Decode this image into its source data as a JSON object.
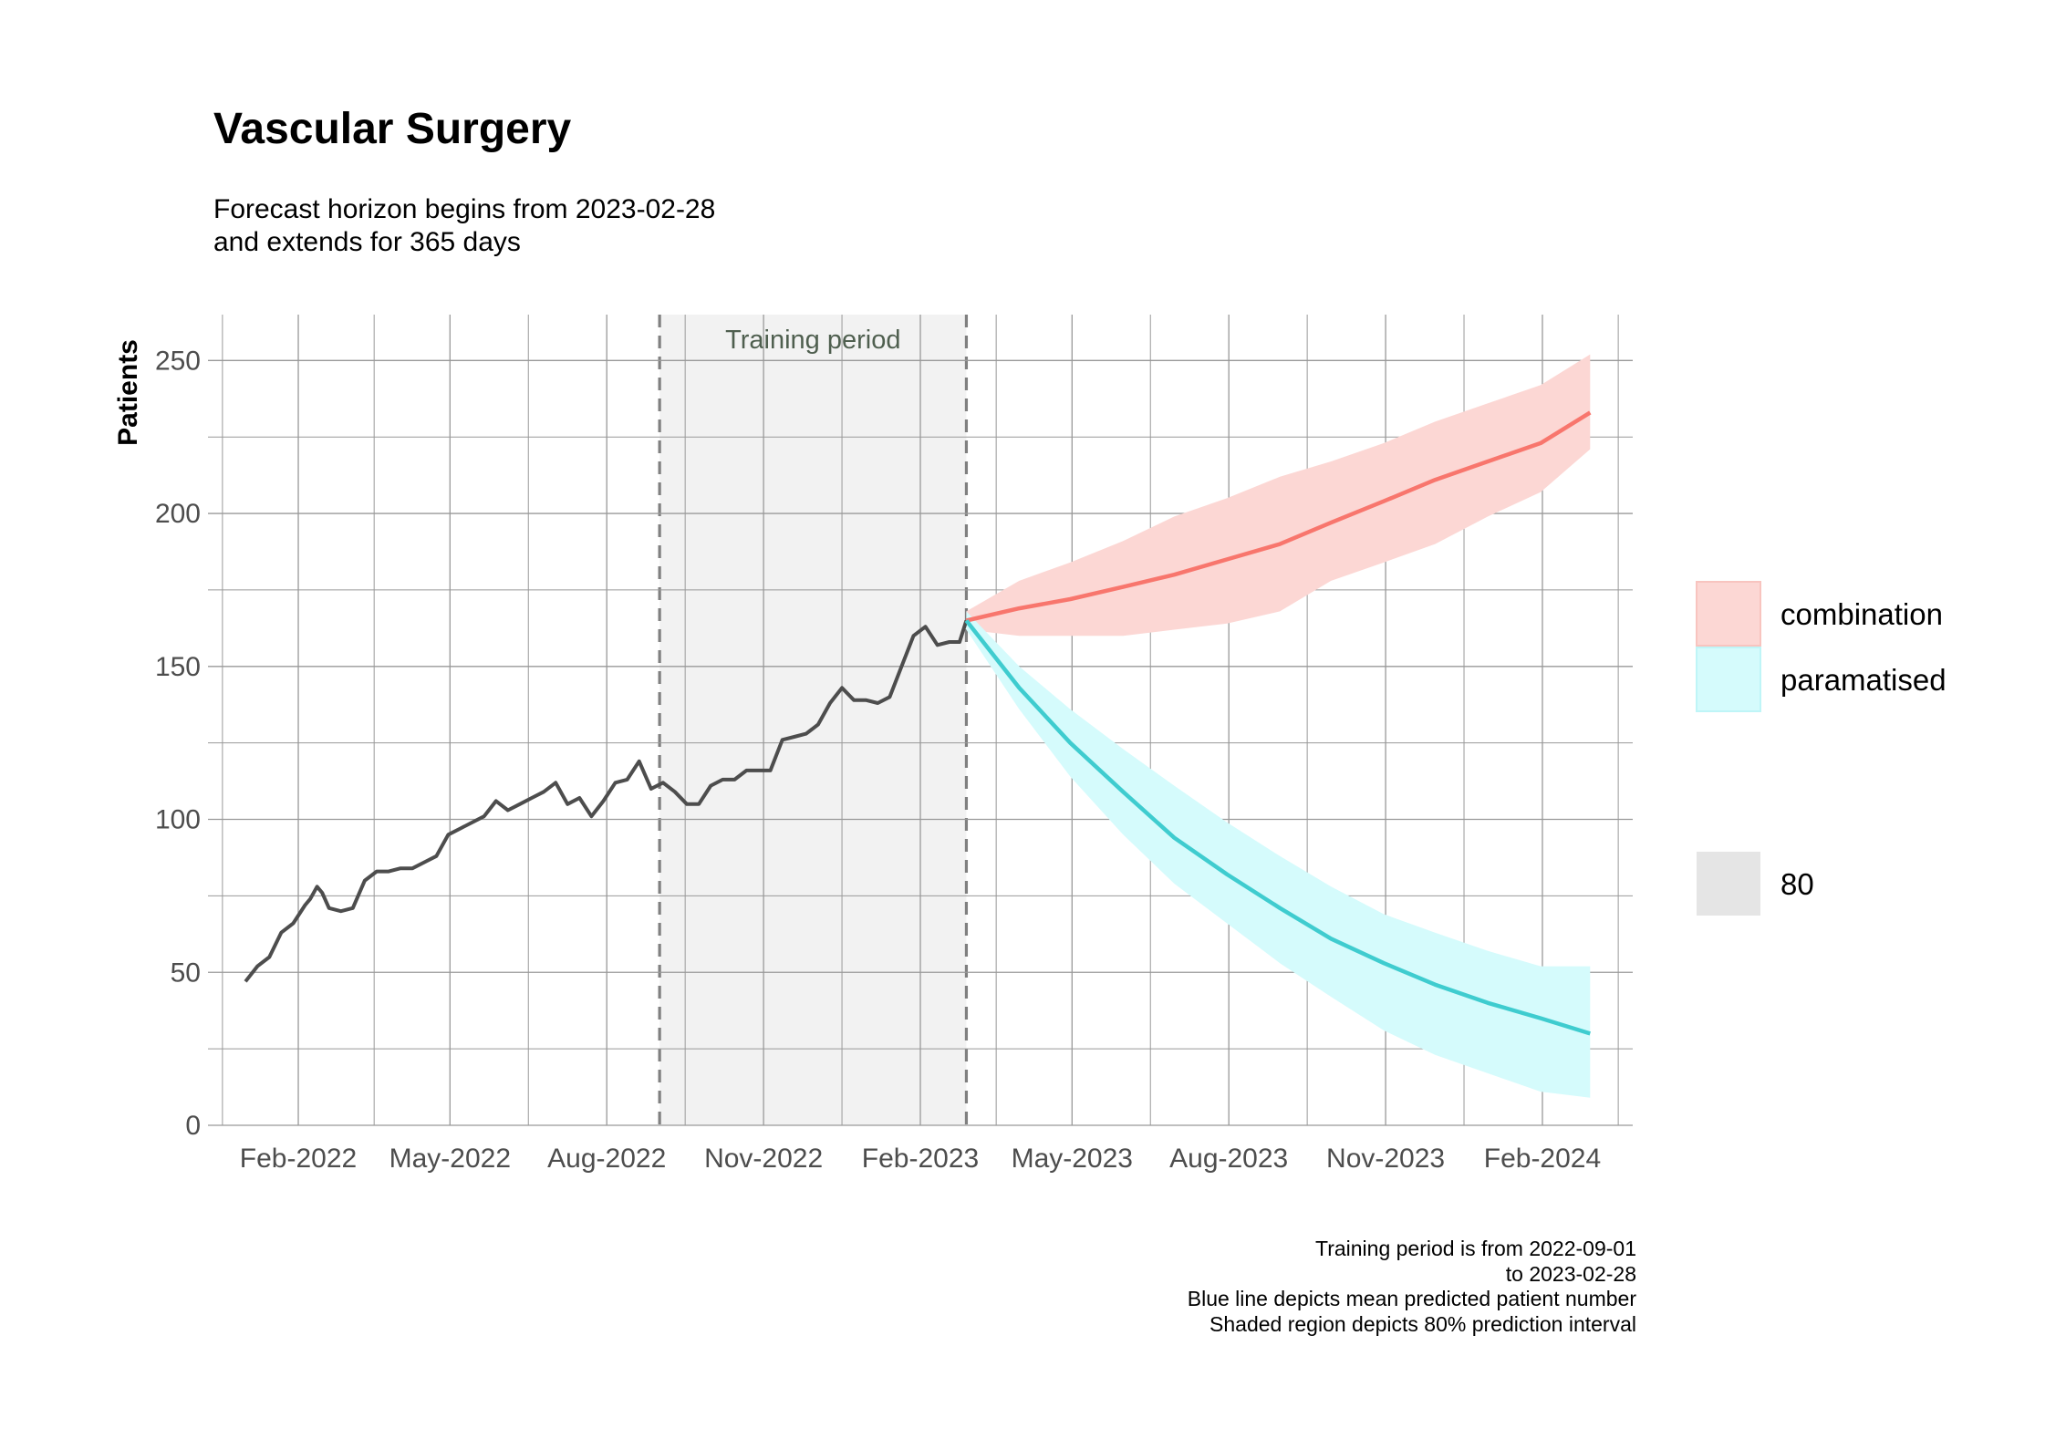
{
  "title": "Vascular Surgery",
  "subtitle_lines": [
    "Forecast horizon begins from 2023-02-28",
    "and extends for 365 days"
  ],
  "caption_lines": [
    "Training period is from 2022-09-01",
    "to 2023-02-28",
    "Blue line depicts mean predicted patient number",
    "Shaded region depicts 80% prediction interval"
  ],
  "colors": {
    "history": "#4d4d4d",
    "combination": "#f8766d",
    "combination_band": "#fcd7d4",
    "paramatised": "#3fcccf",
    "paramatised_band": "#d5fbfc",
    "training_shade": "#f2f2f2",
    "grid": "#999999"
  },
  "chart_data": {
    "type": "line",
    "xlabel": "",
    "ylabel": "Patients",
    "x_tick_labels": [
      "Feb-2022",
      "May-2022",
      "Aug-2022",
      "Nov-2022",
      "Feb-2023",
      "May-2023",
      "Aug-2023",
      "Nov-2023",
      "Feb-2024"
    ],
    "x_tick_dates": [
      "2022-02-01",
      "2022-05-01",
      "2022-08-01",
      "2022-11-01",
      "2023-02-01",
      "2023-05-01",
      "2023-08-01",
      "2023-11-01",
      "2024-02-01"
    ],
    "xlim": [
      "2021-12-10",
      "2024-03-25"
    ],
    "y_ticks": [
      0,
      50,
      100,
      150,
      200,
      250
    ],
    "ylim": [
      0,
      265
    ],
    "grid": true,
    "training_period": {
      "label": "Training period",
      "start": "2022-09-01",
      "end": "2023-02-28"
    },
    "history": {
      "dates": [
        "2022-01-01",
        "2022-01-08",
        "2022-01-15",
        "2022-01-22",
        "2022-01-29",
        "2022-02-05",
        "2022-02-08",
        "2022-02-12",
        "2022-02-15",
        "2022-02-19",
        "2022-02-26",
        "2022-03-05",
        "2022-03-12",
        "2022-03-19",
        "2022-03-26",
        "2022-04-02",
        "2022-04-09",
        "2022-04-16",
        "2022-04-23",
        "2022-04-30",
        "2022-05-07",
        "2022-05-14",
        "2022-05-21",
        "2022-05-28",
        "2022-06-04",
        "2022-06-11",
        "2022-06-18",
        "2022-06-25",
        "2022-07-02",
        "2022-07-09",
        "2022-07-16",
        "2022-07-23",
        "2022-07-30",
        "2022-08-06",
        "2022-08-13",
        "2022-08-20",
        "2022-08-27",
        "2022-09-03",
        "2022-09-10",
        "2022-09-17",
        "2022-09-24",
        "2022-10-01",
        "2022-10-08",
        "2022-10-15",
        "2022-10-22",
        "2022-10-29",
        "2022-11-05",
        "2022-11-12",
        "2022-11-19",
        "2022-11-26",
        "2022-12-03",
        "2022-12-10",
        "2022-12-17",
        "2022-12-24",
        "2022-12-31",
        "2023-01-07",
        "2023-01-14",
        "2023-01-21",
        "2023-01-28",
        "2023-02-04",
        "2023-02-11",
        "2023-02-18",
        "2023-02-24",
        "2023-02-28"
      ],
      "values": [
        47,
        52,
        55,
        63,
        66,
        72,
        74,
        78,
        76,
        71,
        70,
        71,
        80,
        83,
        83,
        84,
        84,
        86,
        88,
        95,
        97,
        99,
        101,
        106,
        103,
        105,
        107,
        109,
        112,
        105,
        107,
        101,
        106,
        112,
        113,
        119,
        110,
        112,
        109,
        105,
        105,
        111,
        113,
        113,
        116,
        116,
        116,
        126,
        127,
        128,
        131,
        138,
        143,
        139,
        139,
        138,
        140,
        150,
        160,
        163,
        157,
        158,
        158,
        165
      ]
    },
    "series": [
      {
        "name": "combination",
        "dates": [
          "2023-02-28",
          "2023-03-31",
          "2023-04-30",
          "2023-05-31",
          "2023-06-30",
          "2023-07-31",
          "2023-08-31",
          "2023-09-30",
          "2023-10-31",
          "2023-11-30",
          "2023-12-31",
          "2024-01-31",
          "2024-02-29"
        ],
        "mean": [
          165,
          169,
          172,
          176,
          180,
          185,
          190,
          197,
          204,
          211,
          217,
          223,
          233
        ],
        "lower": [
          162,
          160,
          160,
          160,
          162,
          164,
          168,
          178,
          184,
          190,
          199,
          207,
          221
        ],
        "upper": [
          168,
          178,
          184,
          191,
          199,
          205,
          212,
          217,
          223,
          230,
          236,
          242,
          252
        ]
      },
      {
        "name": "paramatised",
        "dates": [
          "2023-02-28",
          "2023-03-31",
          "2023-04-30",
          "2023-05-31",
          "2023-06-30",
          "2023-07-31",
          "2023-08-31",
          "2023-09-30",
          "2023-10-31",
          "2023-11-30",
          "2023-12-31",
          "2024-01-31",
          "2024-02-29"
        ],
        "mean": [
          165,
          143,
          125,
          109,
          94,
          82,
          71,
          61,
          53,
          46,
          40,
          35,
          30
        ],
        "lower": [
          162,
          136,
          114,
          95,
          79,
          66,
          53,
          42,
          31,
          23,
          17,
          11,
          9
        ],
        "upper": [
          168,
          150,
          136,
          123,
          111,
          99,
          88,
          78,
          69,
          63,
          57,
          52,
          52
        ]
      }
    ],
    "legend": {
      "placement": "right",
      "items": [
        {
          "label": "combination",
          "color": "#fcd7d4"
        },
        {
          "label": "paramatised",
          "color": "#d5fbfc"
        }
      ],
      "interval_items": [
        {
          "label": "80",
          "color": "#e5e5e5"
        }
      ]
    }
  }
}
